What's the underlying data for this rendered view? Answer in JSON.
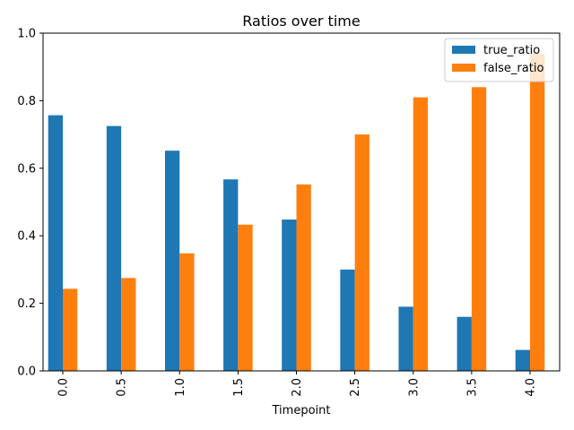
{
  "chart_data": {
    "type": "bar",
    "title": "Ratios over time",
    "xlabel": "Timepoint",
    "ylabel": "",
    "categories": [
      "0.0",
      "0.5",
      "1.0",
      "1.5",
      "2.0",
      "2.5",
      "3.0",
      "3.5",
      "4.0"
    ],
    "series": [
      {
        "name": "true_ratio",
        "color": "#1f77b4",
        "values": [
          0.757,
          0.725,
          0.652,
          0.567,
          0.448,
          0.3,
          0.19,
          0.16,
          0.062
        ]
      },
      {
        "name": "false_ratio",
        "color": "#ff7f0e",
        "values": [
          0.243,
          0.275,
          0.348,
          0.433,
          0.552,
          0.7,
          0.81,
          0.84,
          0.938
        ]
      }
    ],
    "ylim": [
      0,
      1.0
    ],
    "yticks": [
      "0.0",
      "0.2",
      "0.4",
      "0.6",
      "0.8",
      "1.0"
    ],
    "grid": false,
    "legend_position": "top-right"
  }
}
